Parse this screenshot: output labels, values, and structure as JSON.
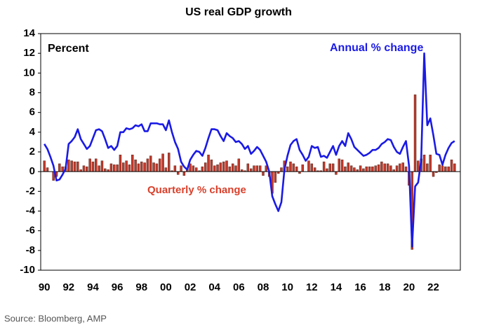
{
  "chart_data": {
    "type": "bar",
    "title": "US real GDP growth",
    "y_label": "Percent",
    "source": "Source: Bloomberg, AMP",
    "categories": [
      "90",
      null,
      null,
      null,
      null,
      null,
      null,
      null,
      "92",
      null,
      null,
      null,
      null,
      null,
      null,
      null,
      "94",
      null,
      null,
      null,
      null,
      null,
      null,
      null,
      "96",
      null,
      null,
      null,
      null,
      null,
      null,
      null,
      "98",
      null,
      null,
      null,
      null,
      null,
      null,
      null,
      "00",
      null,
      null,
      null,
      null,
      null,
      null,
      null,
      "02",
      null,
      null,
      null,
      null,
      null,
      null,
      null,
      "04",
      null,
      null,
      null,
      null,
      null,
      null,
      null,
      "06",
      null,
      null,
      null,
      null,
      null,
      null,
      null,
      "08",
      null,
      null,
      null,
      null,
      null,
      null,
      null,
      "10",
      null,
      null,
      null,
      null,
      null,
      null,
      null,
      "12",
      null,
      null,
      null,
      null,
      null,
      null,
      null,
      "14",
      null,
      null,
      null,
      null,
      null,
      null,
      null,
      "16",
      null,
      null,
      null,
      null,
      null,
      null,
      null,
      "18",
      null,
      null,
      null,
      null,
      null,
      null,
      null,
      "20",
      null,
      null,
      null,
      null,
      null,
      null,
      null,
      "22",
      null,
      null,
      null,
      null,
      null,
      null,
      null
    ],
    "series": [
      {
        "name": "Quarterly % change",
        "type": "bar",
        "color": "#c0392b",
        "values": [
          1.1,
          0.4,
          0.0,
          -0.9,
          -0.5,
          0.8,
          0.5,
          0.5,
          1.2,
          1.1,
          1.0,
          1.0,
          0.2,
          0.6,
          0.5,
          1.3,
          1.0,
          1.3,
          0.6,
          1.1,
          0.3,
          0.2,
          0.8,
          0.7,
          0.7,
          1.7,
          0.9,
          1.1,
          0.7,
          1.7,
          1.2,
          0.8,
          1.0,
          0.9,
          1.3,
          1.6,
          0.9,
          0.8,
          1.3,
          1.8,
          0.4,
          1.9,
          0.1,
          0.6,
          -0.3,
          0.6,
          -0.4,
          0.3,
          0.8,
          0.6,
          0.4,
          0.1,
          0.5,
          0.9,
          1.7,
          1.2,
          0.6,
          0.7,
          0.9,
          1.0,
          1.1,
          0.5,
          0.8,
          0.6,
          1.3,
          0.2,
          0.1,
          0.8,
          0.3,
          0.6,
          0.6,
          0.6,
          -0.4,
          0.6,
          -0.5,
          -2.2,
          -1.1,
          -0.2,
          0.4,
          1.1,
          0.5,
          1.0,
          0.8,
          0.5,
          -0.2,
          0.7,
          0.0,
          1.1,
          0.8,
          0.4,
          0.1,
          0.1,
          1.0,
          0.3,
          0.8,
          0.8,
          -0.3,
          1.3,
          1.2,
          0.5,
          0.9,
          0.6,
          0.4,
          0.2,
          0.6,
          0.3,
          0.5,
          0.5,
          0.5,
          0.6,
          0.7,
          1.0,
          0.8,
          0.8,
          0.6,
          0.2,
          0.6,
          0.8,
          0.9,
          0.5,
          -1.4,
          -7.9,
          7.8,
          1.1,
          1.3,
          1.7,
          0.8,
          1.7,
          -0.5,
          -0.1,
          0.7,
          0.6,
          0.5,
          0.5,
          1.2,
          0.8
        ]
      },
      {
        "name": "Annual % change",
        "type": "line",
        "color": "#1a1ae6",
        "values": [
          2.8,
          2.3,
          1.5,
          0.6,
          -0.9,
          -0.8,
          -0.3,
          0.3,
          2.8,
          3.1,
          3.5,
          4.3,
          3.3,
          2.8,
          2.3,
          2.6,
          3.4,
          4.2,
          4.3,
          4.1,
          3.3,
          2.4,
          2.6,
          2.2,
          2.6,
          4.0,
          4.0,
          4.4,
          4.3,
          4.4,
          4.7,
          4.6,
          4.8,
          4.1,
          4.1,
          4.9,
          4.9,
          4.9,
          4.8,
          4.8,
          4.2,
          5.2,
          4.0,
          3.0,
          2.3,
          1.0,
          0.5,
          0.2,
          1.2,
          1.7,
          2.1,
          2.0,
          1.6,
          2.4,
          3.4,
          4.3,
          4.3,
          4.2,
          3.6,
          3.1,
          3.9,
          3.6,
          3.4,
          3.0,
          3.1,
          2.8,
          2.3,
          2.6,
          1.8,
          2.1,
          2.5,
          2.2,
          1.6,
          1.0,
          0.0,
          -2.5,
          -3.3,
          -4.0,
          -3.1,
          0.2,
          1.6,
          2.7,
          3.1,
          3.3,
          2.2,
          1.7,
          1.1,
          1.5,
          2.6,
          2.4,
          2.5,
          1.5,
          1.6,
          1.4,
          2.0,
          2.6,
          1.7,
          2.6,
          3.1,
          2.6,
          3.9,
          3.3,
          2.5,
          2.2,
          1.9,
          1.6,
          1.7,
          1.9,
          2.2,
          2.2,
          2.4,
          2.8,
          3.0,
          3.3,
          3.2,
          2.5,
          2.0,
          1.8,
          2.5,
          3.1,
          0.6,
          -7.6,
          -1.5,
          -1.1,
          1.2,
          12.0,
          4.7,
          5.4,
          3.7,
          1.8,
          1.7,
          0.7,
          1.7,
          2.4,
          2.9,
          3.1
        ]
      }
    ],
    "ylim": [
      -10,
      14
    ],
    "yticks": [
      -10,
      -8,
      -6,
      -4,
      -2,
      0,
      2,
      4,
      6,
      8,
      10,
      12,
      14
    ],
    "grid": false
  }
}
